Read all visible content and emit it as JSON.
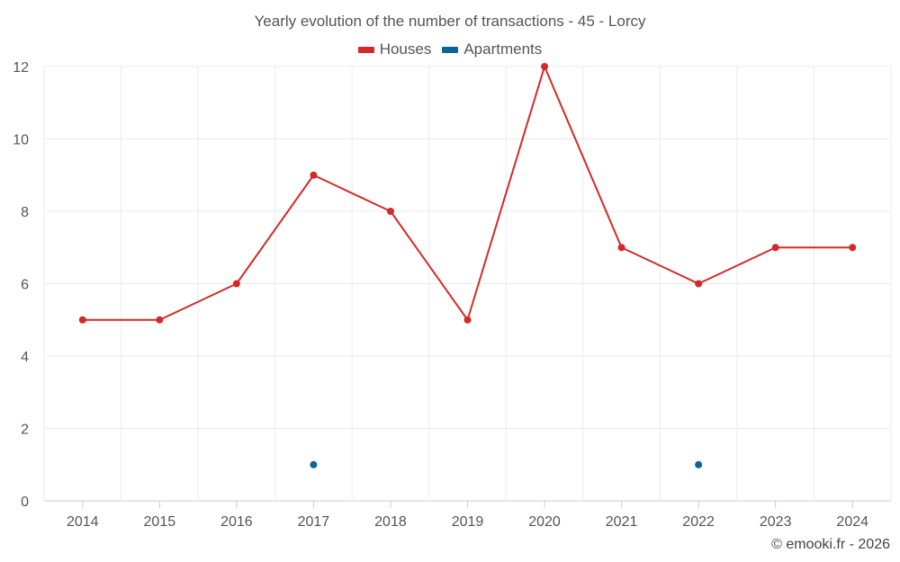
{
  "chart_data": {
    "type": "line",
    "title": "Yearly evolution of the number of transactions - 45 - Lorcy",
    "categories": [
      "2014",
      "2015",
      "2016",
      "2017",
      "2018",
      "2019",
      "2020",
      "2021",
      "2022",
      "2023",
      "2024"
    ],
    "series": [
      {
        "name": "Houses",
        "color": "#d32a27",
        "values": [
          5,
          5,
          6,
          9,
          8,
          5,
          12,
          7,
          6,
          7,
          7
        ]
      },
      {
        "name": "Apartments",
        "color": "#0c6499",
        "values": [
          null,
          null,
          null,
          1,
          null,
          null,
          null,
          null,
          1,
          null,
          null
        ]
      }
    ],
    "ylim": [
      0,
      12
    ],
    "yticks": [
      0,
      2,
      4,
      6,
      8,
      10,
      12
    ],
    "grid": true,
    "legend": "top-center",
    "xlabel": "",
    "ylabel": ""
  },
  "credit": "© emooki.fr - 2026"
}
